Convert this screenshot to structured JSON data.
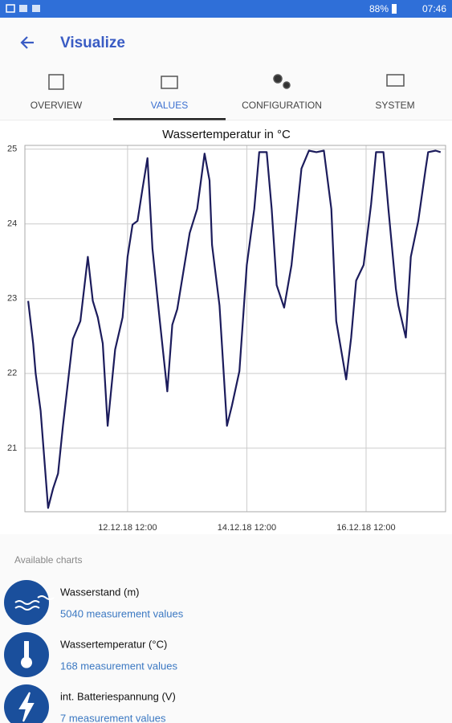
{
  "status_bar": {
    "battery": "88%",
    "time": "07:46"
  },
  "app_bar": {
    "title": "Visualize"
  },
  "tabs": [
    {
      "label": "OVERVIEW",
      "active": false
    },
    {
      "label": "VALUES",
      "active": true
    },
    {
      "label": "CONFIGURATION",
      "active": false
    },
    {
      "label": "SYSTEM",
      "active": false
    }
  ],
  "chart_data": {
    "type": "line",
    "title": "Wassertemperatur in °C",
    "x": [
      "10.12.18 20:00",
      "10.12.18 22:00",
      "10.12.18 23:00",
      "11.12.18 01:00",
      "11.12.18 04:00",
      "11.12.18 06:00",
      "11.12.18 08:00",
      "11.12.18 10:00",
      "11.12.18 14:00",
      "11.12.18 17:00",
      "11.12.18 20:00",
      "11.12.18 22:00",
      "12.12.18 00:00",
      "12.12.18 02:00",
      "12.12.18 04:00",
      "12.12.18 07:00",
      "12.12.18 10:00",
      "12.12.18 12:00",
      "12.12.18 14:00",
      "12.12.18 16:00",
      "12.12.18 18:00",
      "12.12.18 20:00",
      "12.12.18 22:00",
      "13.12.18 00:00",
      "13.12.18 01:00",
      "13.12.18 04:00",
      "13.12.18 06:00",
      "13.12.18 08:00",
      "13.12.18 13:00",
      "13.12.18 16:00",
      "13.12.18 19:00",
      "13.12.18 21:00",
      "13.12.18 22:00",
      "14.12.18 01:00",
      "14.12.18 04:00",
      "14.12.18 06:00",
      "14.12.18 09:00",
      "14.12.18 12:00",
      "14.12.18 15:00",
      "14.12.18 17:00",
      "14.12.18 20:00",
      "14.12.18 22:00",
      "15.12.18 00:00",
      "15.12.18 03:00",
      "15.12.18 06:00",
      "15.12.18 10:00",
      "15.12.18 13:00",
      "15.12.18 16:00",
      "15.12.18 19:00",
      "15.12.18 22:00",
      "16.12.18 00:00",
      "16.12.18 04:00",
      "16.12.18 06:00",
      "16.12.18 08:00",
      "16.12.18 11:00",
      "16.12.18 14:00",
      "16.12.18 16:00",
      "16.12.18 19:00",
      "16.12.18 21:00",
      "17.12.18 00:00",
      "17.12.18 01:00",
      "17.12.18 04:00",
      "17.12.18 06:00",
      "17.12.18 09:00",
      "17.12.18 12:00",
      "17.12.18 13:00",
      "17.12.18 16:00",
      "17.12.18 18:00"
    ],
    "series": [
      {
        "name": "Wassertemperatur",
        "color": "#1c1c5c",
        "values": [
          22.97,
          22.4,
          22.0,
          21.5,
          20.2,
          20.46,
          20.66,
          21.3,
          22.46,
          22.7,
          23.56,
          22.97,
          22.75,
          22.4,
          21.3,
          22.32,
          22.75,
          23.56,
          23.99,
          24.04,
          24.47,
          24.88,
          23.67,
          23.02,
          22.7,
          21.76,
          22.65,
          22.86,
          23.88,
          24.2,
          24.94,
          24.58,
          23.72,
          22.91,
          21.3,
          21.57,
          22.03,
          23.45,
          24.2,
          24.96,
          24.96,
          24.2,
          23.18,
          22.88,
          23.45,
          24.74,
          24.98,
          24.96,
          24.98,
          24.2,
          22.7,
          21.92,
          22.48,
          23.24,
          23.45,
          24.26,
          24.96,
          24.96,
          24.2,
          23.13,
          22.91,
          22.48,
          23.56,
          24.04,
          24.74,
          24.96,
          24.98,
          24.96
        ]
      }
    ],
    "xlim": [
      "10.12.18 18:40",
      "17.12.18 20:00"
    ],
    "xticks": [
      "12.12.18 12:00",
      "14.12.18 12:00",
      "16.12.18 12:00"
    ],
    "ylim": [
      20.15,
      25.05
    ],
    "yticks": [
      21,
      22,
      23,
      24,
      25
    ],
    "grid": true
  },
  "available_charts": {
    "heading": "Available charts",
    "items": [
      {
        "title": "Wasserstand (m)",
        "subtitle": "5040 measurement values"
      },
      {
        "title": "Wassertemperatur (°C)",
        "subtitle": "168 measurement values"
      },
      {
        "title": "int. Batteriespannung (V)",
        "subtitle": "7 measurement values"
      }
    ]
  }
}
